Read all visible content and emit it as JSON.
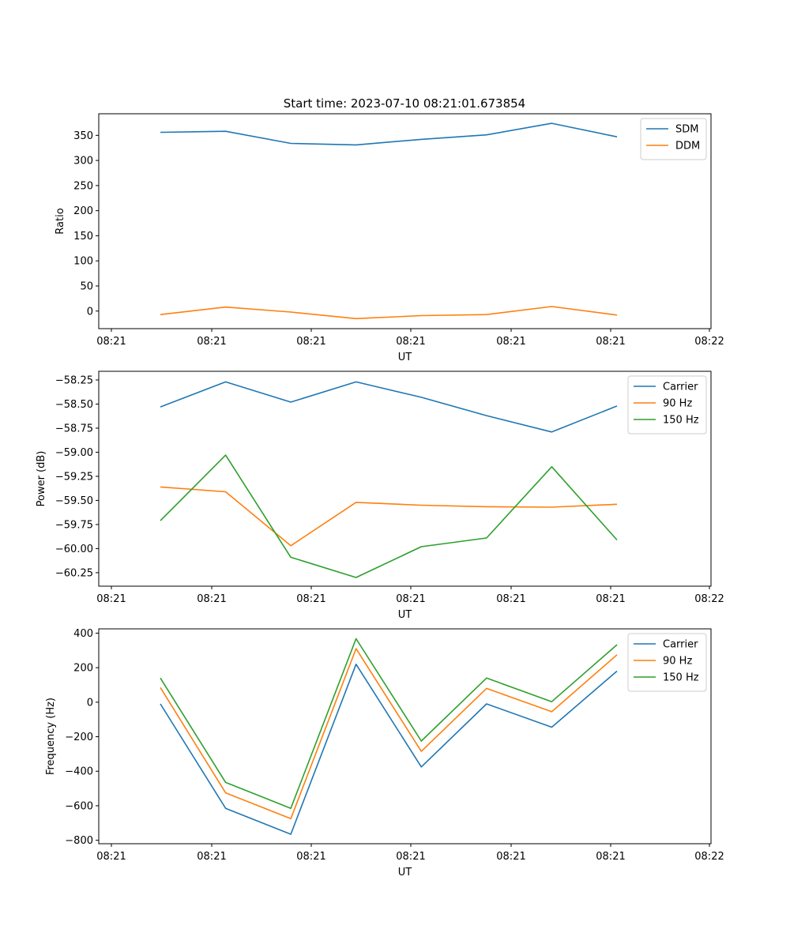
{
  "chart_data": {
    "title": "Start time: 2023-07-10 08:21:01.673854",
    "x_tick_labels": [
      "08:21",
      "08:21",
      "08:21",
      "08:21",
      "08:21",
      "08:21",
      "08:22"
    ],
    "colors": {
      "c0": "#1f77b4",
      "c1": "#ff7f0e",
      "c2": "#2ca02c"
    },
    "panels": [
      {
        "type": "line",
        "xlabel": "UT",
        "ylabel": "Ratio",
        "ylim": [
          -35,
          393
        ],
        "yticks": [
          0,
          50,
          100,
          150,
          200,
          250,
          300,
          350
        ],
        "ytick_labels": [
          "0",
          "50",
          "100",
          "150",
          "200",
          "250",
          "300",
          "350"
        ],
        "legend": "upper right",
        "series": [
          {
            "name": "SDM",
            "color": "#1f77b4",
            "values": [
              356,
              358,
              334,
              331,
              342,
              351,
              374,
              347
            ]
          },
          {
            "name": "DDM",
            "color": "#ff7f0e",
            "values": [
              -7,
              8,
              -2,
              -15,
              -9,
              -7,
              9,
              -8
            ]
          }
        ]
      },
      {
        "type": "line",
        "xlabel": "UT",
        "ylabel": "Power (dB)",
        "ylim": [
          -60.39,
          -58.16
        ],
        "yticks": [
          -60.25,
          -60.0,
          -59.75,
          -59.5,
          -59.25,
          -59.0,
          -58.75,
          -58.5,
          -58.25
        ],
        "ytick_labels": [
          "−60.25",
          "−60.00",
          "−59.75",
          "−59.50",
          "−59.25",
          "−59.00",
          "−58.75",
          "−58.50",
          "−58.25"
        ],
        "legend": "upper right",
        "series": [
          {
            "name": "Carrier",
            "color": "#1f77b4",
            "values": [
              -58.53,
              -58.27,
              -58.48,
              -58.27,
              -58.43,
              -58.62,
              -58.79,
              -58.52
            ]
          },
          {
            "name": "90 Hz",
            "color": "#ff7f0e",
            "values": [
              -59.36,
              -59.41,
              -59.97,
              -59.52,
              -59.55,
              -59.565,
              -59.57,
              -59.54
            ]
          },
          {
            "name": "150 Hz",
            "color": "#2ca02c",
            "values": [
              -59.71,
              -59.03,
              -60.09,
              -60.3,
              -59.98,
              -59.89,
              -59.15,
              -59.91
            ]
          }
        ]
      },
      {
        "type": "line",
        "xlabel": "UT",
        "ylabel": "Frequency (Hz)",
        "ylim": [
          -820,
          425
        ],
        "yticks": [
          -800,
          -600,
          -400,
          -200,
          0,
          200,
          400
        ],
        "ytick_labels": [
          "−800",
          "−600",
          "−400",
          "−200",
          "0",
          "200",
          "400"
        ],
        "legend": "upper right",
        "series": [
          {
            "name": "Carrier",
            "color": "#1f77b4",
            "values": [
              -10,
              -615,
              -765,
              220,
              -375,
              -10,
              -145,
              180
            ]
          },
          {
            "name": "90 Hz",
            "color": "#ff7f0e",
            "values": [
              85,
              -525,
              -675,
              310,
              -285,
              80,
              -55,
              275
            ]
          },
          {
            "name": "150 Hz",
            "color": "#2ca02c",
            "values": [
              140,
              -465,
              -615,
              368,
              -225,
              140,
              3,
              333
            ]
          }
        ]
      }
    ]
  }
}
